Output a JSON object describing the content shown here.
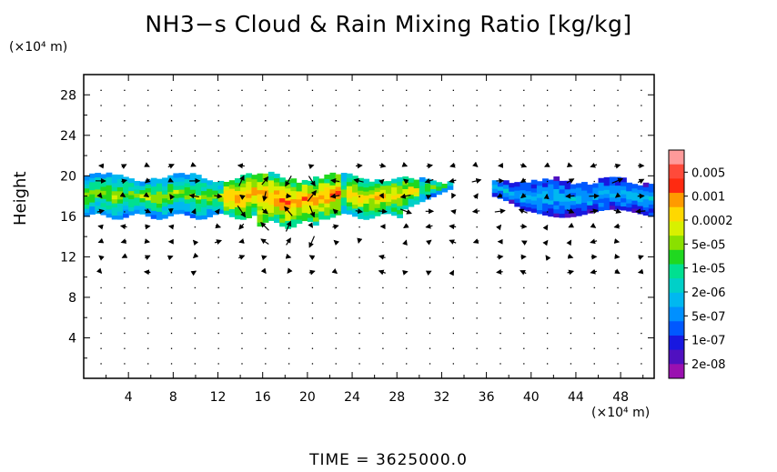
{
  "chart_data": {
    "type": "heatmap",
    "title": "NH3−s Cloud & Rain Mixing Ratio [kg/kg]",
    "xlabel": "",
    "ylabel": "Height",
    "x_unit": "(×10⁴ m)",
    "y_unit": "(×10⁴ m)",
    "xlim": [
      0,
      51
    ],
    "ylim": [
      0,
      30
    ],
    "x_ticks": [
      4,
      8,
      12,
      16,
      20,
      24,
      28,
      32,
      36,
      40,
      44,
      48
    ],
    "y_ticks": [
      4,
      8,
      12,
      16,
      20,
      24,
      28
    ],
    "colorbar": {
      "labels": [
        "0.005",
        "0.001",
        "0.0002",
        "5e-05",
        "1e-05",
        "2e-06",
        "5e-07",
        "1e-07",
        "2e-08"
      ],
      "colors": [
        "#ff9a9a",
        "#ff4a3a",
        "#ff2a10",
        "#ff9a00",
        "#ffd800",
        "#d8f000",
        "#8ae000",
        "#20d820",
        "#00e090",
        "#00d0c8",
        "#00b8f0",
        "#0090ff",
        "#0058ff",
        "#1818e0",
        "#5010c0",
        "#9a10b0"
      ]
    },
    "vectors": "wind vector arrows overlaid on the field",
    "footer": "TIME = 3625000.0"
  }
}
